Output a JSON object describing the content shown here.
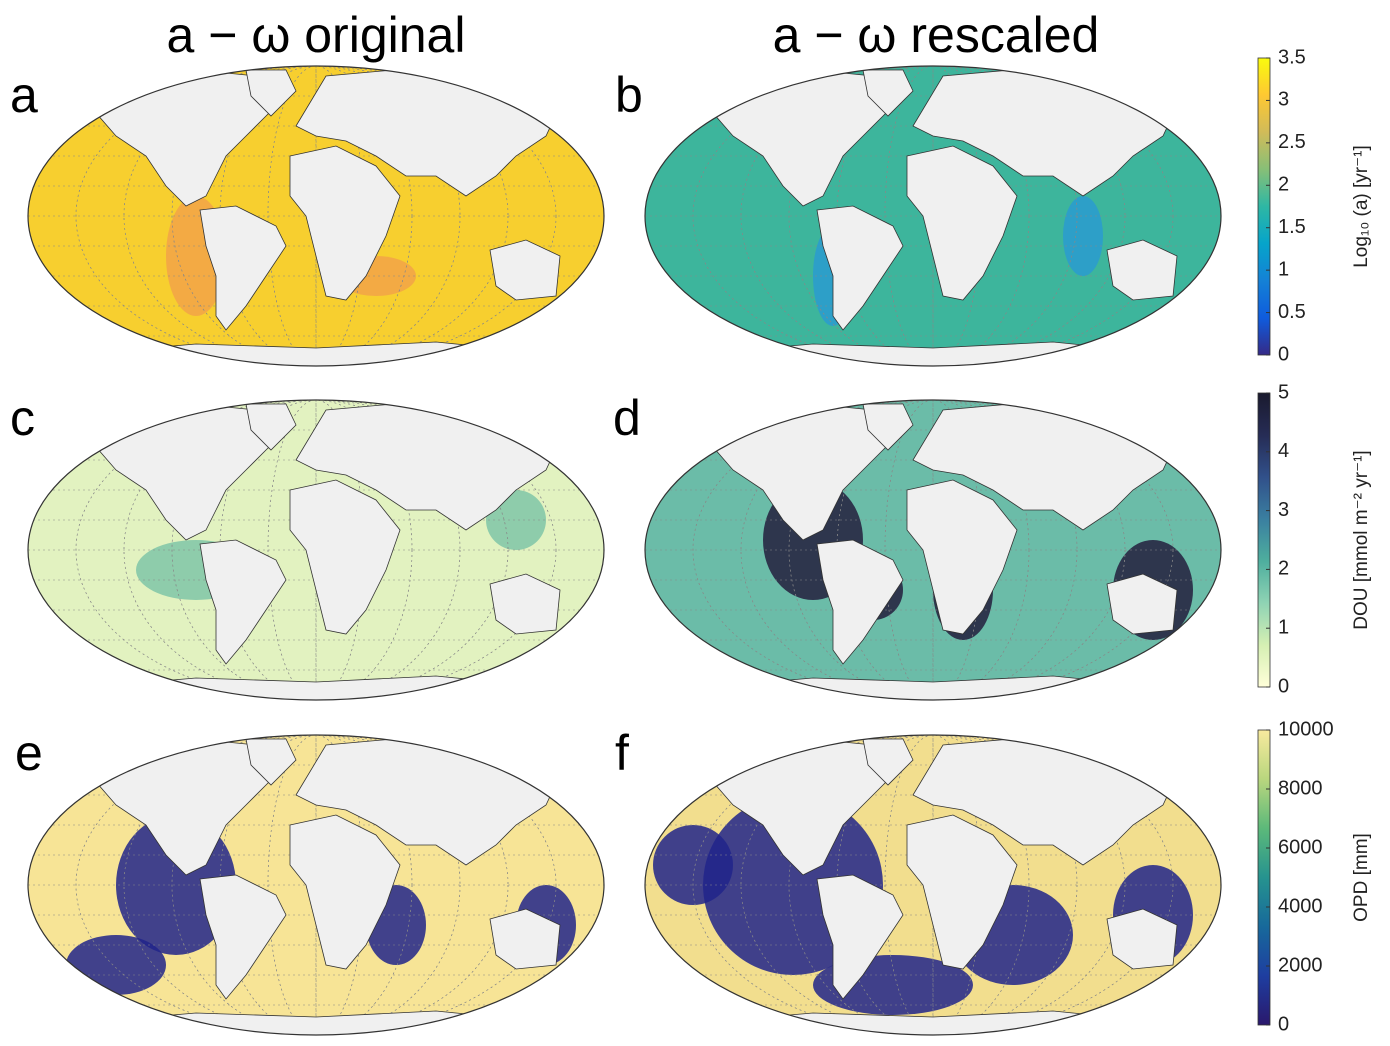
{
  "columns": [
    "a − ω original",
    "a − ω rescaled"
  ],
  "panels": [
    {
      "letter": "a"
    },
    {
      "letter": "b"
    },
    {
      "letter": "c"
    },
    {
      "letter": "d"
    },
    {
      "letter": "e"
    },
    {
      "letter": "f"
    }
  ],
  "colorbars": [
    {
      "label": "Log₁₀ (a) [yr⁻¹]",
      "lim": [
        0,
        3.5
      ],
      "ticks": [
        0,
        0.5,
        1,
        1.5,
        2,
        2.5,
        3,
        3.5
      ],
      "colormap": [
        "#352a87",
        "#0f5cdd",
        "#1481d6",
        "#06a4ca",
        "#2eb7a4",
        "#87bf77",
        "#d1bb59",
        "#fec832",
        "#f9fb0e"
      ]
    },
    {
      "label": "DOU [mmol m⁻² yr⁻¹]",
      "lim": [
        0,
        5
      ],
      "ticks": [
        0,
        1,
        2,
        3,
        4,
        5
      ],
      "colormap": [
        "#ffffd9",
        "#d5efb3",
        "#8fd3b4",
        "#4eae9e",
        "#3a7fa0",
        "#31508a",
        "#262c55",
        "#1a1a2e"
      ]
    },
    {
      "label": "OPD [mm]",
      "lim": [
        0,
        10000
      ],
      "ticks": [
        0,
        2000,
        4000,
        6000,
        8000,
        10000
      ],
      "colormap": [
        "#2a186c",
        "#1e3ea0",
        "#17699b",
        "#26938f",
        "#5cb97a",
        "#b9d67e",
        "#f8ea9e"
      ]
    }
  ]
}
